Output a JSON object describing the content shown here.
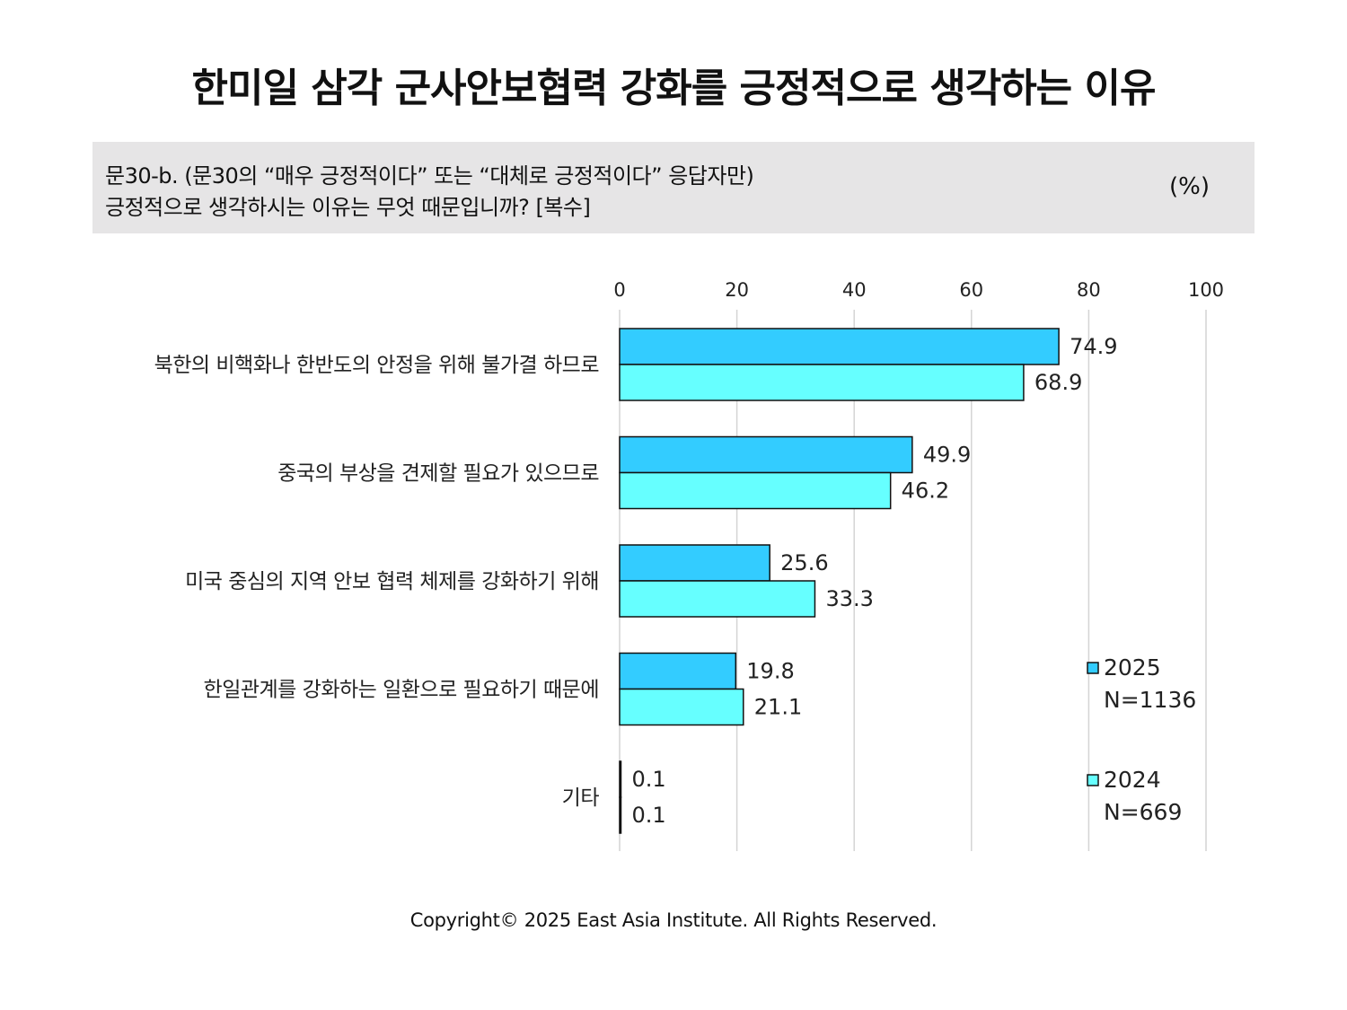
{
  "title": "한미일 삼각 군사안보협력 강화를 긍정적으로 생각하는 이유",
  "question": {
    "line1": "문30-b. (문30의 “매우 긍정적이다” 또는 “대체로 긍정적이다” 응답자만)",
    "line2": "긍정적으로 생각하시는 이유는 무엇 때문입니까? [복수]",
    "unit": "(%)"
  },
  "footer": {
    "copyright": "Copyright© 2025 East Asia Institute. All Rights Reserved."
  },
  "chart_data": {
    "type": "bar",
    "orientation": "horizontal",
    "categories": [
      "북한의 비핵화나 한반도의 안정을 위해 불가결 하므로",
      "중국의 부상을 견제할 필요가 있으므로",
      "미국 중심의 지역 안보 협력 체제를 강화하기 위해",
      "한일관계를 강화하는 일환으로 필요하기 때문에",
      "기타"
    ],
    "series": [
      {
        "name": "2025",
        "n_label": "N=1136",
        "color": "#33ccff",
        "values": [
          74.9,
          49.9,
          25.6,
          19.8,
          0.1
        ]
      },
      {
        "name": "2024",
        "n_label": "N=669",
        "color": "#66ffff",
        "values": [
          68.9,
          46.2,
          33.3,
          21.1,
          0.1
        ]
      }
    ],
    "value_labels": [
      [
        "74.9",
        "49.9",
        "25.6",
        "19.8",
        "0.1"
      ],
      [
        "68.9",
        "46.2",
        "33.3",
        "21.1",
        "0.1"
      ]
    ],
    "xlim": [
      0,
      100
    ],
    "xticks": [
      "0",
      "20",
      "40",
      "60",
      "80",
      "100"
    ],
    "xtick_values": [
      0,
      20,
      40,
      60,
      80,
      100
    ],
    "grid": true,
    "legend_position": "right"
  }
}
